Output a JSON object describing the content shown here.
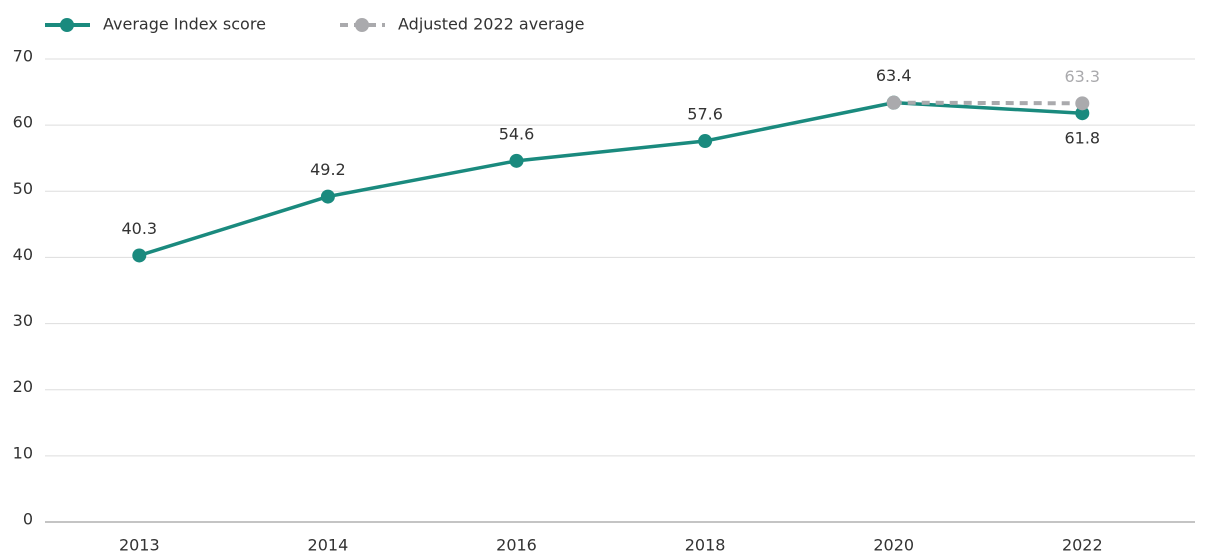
{
  "chart_data": {
    "type": "line",
    "categories": [
      "2013",
      "2014",
      "2016",
      "2018",
      "2020",
      "2022"
    ],
    "series": [
      {
        "name": "Average Index score",
        "color": "#1a8a7e",
        "dashed": false,
        "values": [
          40.3,
          49.2,
          54.6,
          57.6,
          63.4,
          61.8
        ]
      },
      {
        "name": "Adjusted 2022 average",
        "color": "#aaaaad",
        "dashed": true,
        "values": [
          null,
          null,
          null,
          null,
          63.4,
          63.3
        ]
      }
    ],
    "ylim": [
      0,
      70
    ],
    "yticks": [
      0,
      10,
      20,
      30,
      40,
      50,
      60,
      70
    ],
    "grid": true,
    "legend": "top-left"
  }
}
